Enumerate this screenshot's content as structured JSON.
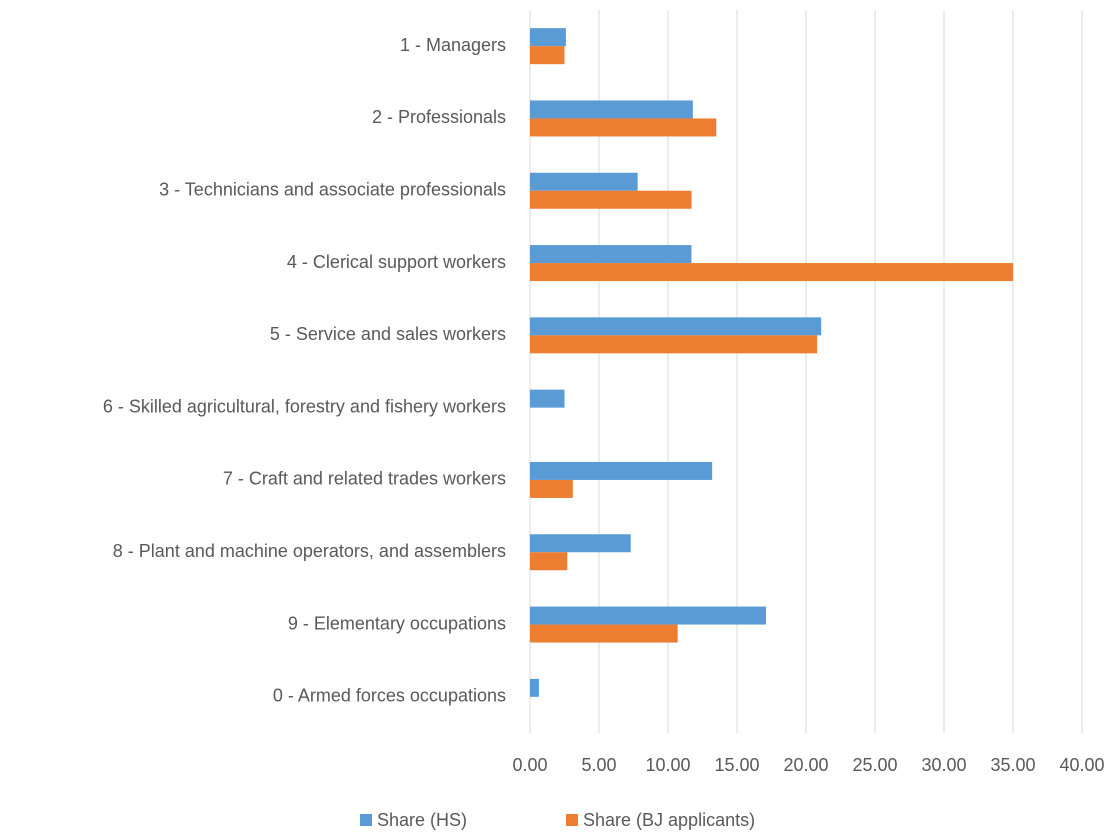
{
  "chart_data": {
    "type": "bar",
    "orientation": "horizontal",
    "categories": [
      "1 - Managers",
      "2 - Professionals",
      "3 - Technicians and associate professionals",
      "4 - Clerical support workers",
      "5 - Service and sales workers",
      "6 - Skilled agricultural, forestry and fishery workers",
      "7 - Craft and related trades workers",
      "8 - Plant and machine operators, and assemblers",
      "9 - Elementary occupations",
      "0 - Armed forces occupations"
    ],
    "series": [
      {
        "name": "Share (HS)",
        "color": "#5b9bd5",
        "values": [
          2.6,
          11.8,
          7.8,
          11.7,
          21.1,
          2.5,
          13.2,
          7.3,
          17.1,
          0.65
        ]
      },
      {
        "name": "Share (BJ applicants)",
        "color": "#ed7d31",
        "values": [
          2.5,
          13.5,
          11.7,
          35.0,
          20.8,
          0,
          3.1,
          2.7,
          10.7,
          0
        ]
      }
    ],
    "xlim": [
      0,
      40
    ],
    "xticks": [
      {
        "value": 0,
        "label": "0.00"
      },
      {
        "value": 5,
        "label": "5.00"
      },
      {
        "value": 10,
        "label": "10.00"
      },
      {
        "value": 15,
        "label": "15.00"
      },
      {
        "value": 20,
        "label": "20.00"
      },
      {
        "value": 25,
        "label": "25.00"
      },
      {
        "value": 30,
        "label": "30.00"
      },
      {
        "value": 35,
        "label": "35.00"
      },
      {
        "value": 40,
        "label": "40.00"
      }
    ],
    "grid": true,
    "legend": "bottom"
  }
}
